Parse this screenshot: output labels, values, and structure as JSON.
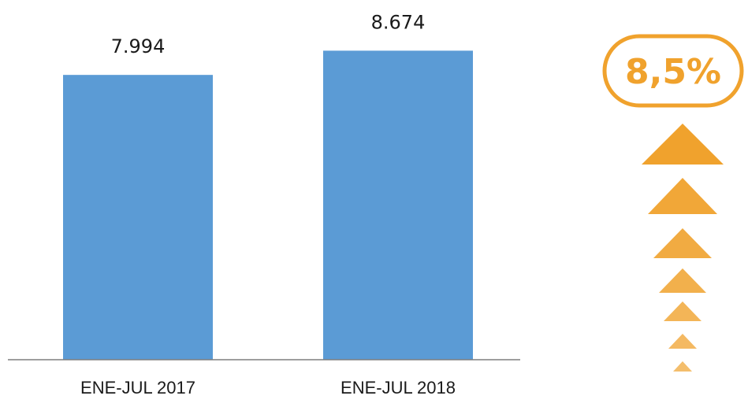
{
  "chart_data": {
    "type": "bar",
    "categories": [
      "ENE-JUL 2017",
      "ENE-JUL 2018"
    ],
    "values": [
      7994,
      8674
    ],
    "value_labels": [
      "7.994",
      "8.674"
    ],
    "title": "",
    "xlabel": "",
    "ylabel": "",
    "ylim": [
      0,
      9500
    ],
    "grid": false,
    "bar_color": "#5B9BD5"
  },
  "badge": {
    "text": "8,5%",
    "color": "#F0A22D",
    "icon": "up-arrows-icon"
  }
}
